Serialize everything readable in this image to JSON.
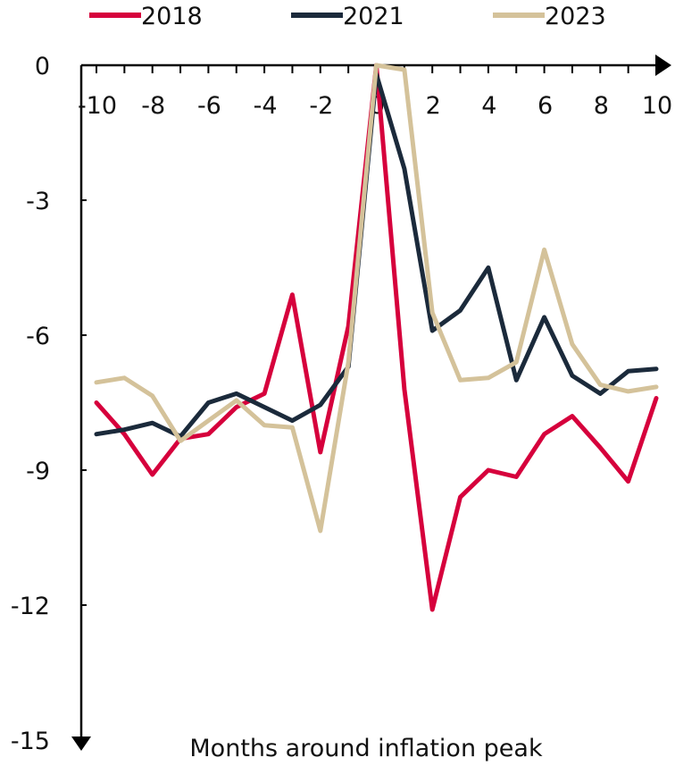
{
  "chart_data": {
    "type": "line",
    "title": "",
    "xlabel": "Months around inflation peak",
    "ylabel": "",
    "xlim": [
      -10,
      10
    ],
    "ylim": [
      -15,
      0
    ],
    "x_ticks": [
      -10,
      -8,
      -6,
      -4,
      -2,
      0,
      2,
      4,
      6,
      8,
      10
    ],
    "y_ticks": [
      0,
      -3,
      -6,
      -9,
      -12,
      -15
    ],
    "grid": false,
    "legend_position": "top",
    "x": [
      -10,
      -9,
      -8,
      -7,
      -6,
      -5,
      -4,
      -3,
      -2,
      -1,
      0,
      1,
      2,
      3,
      4,
      5,
      6,
      7,
      8,
      9,
      10
    ],
    "series": [
      {
        "name": "2018",
        "color": "#d6003c",
        "values": [
          -7.5,
          -8.2,
          -9.1,
          -8.3,
          -8.2,
          -7.6,
          -7.3,
          -5.1,
          -8.6,
          -5.8,
          0.0,
          -7.2,
          -12.1,
          -9.6,
          -9.0,
          -9.15,
          -8.2,
          -7.8,
          -8.5,
          -9.25,
          -7.4
        ]
      },
      {
        "name": "2021",
        "color": "#1b2a3b",
        "values": [
          -8.2,
          -8.1,
          -7.95,
          -8.25,
          -7.5,
          -7.3,
          -7.6,
          -7.9,
          -7.55,
          -6.7,
          -0.2,
          -2.3,
          -5.9,
          -5.45,
          -4.5,
          -7.0,
          -5.6,
          -6.9,
          -7.3,
          -6.8,
          -6.75
        ]
      },
      {
        "name": "2023",
        "color": "#d4c29a",
        "values": [
          -7.05,
          -6.95,
          -7.35,
          -8.35,
          -7.9,
          -7.45,
          -8.0,
          -8.05,
          -10.35,
          -6.6,
          0.0,
          -0.1,
          -5.5,
          -7.0,
          -6.95,
          -6.6,
          -4.1,
          -6.2,
          -7.1,
          -7.25,
          -7.15
        ]
      }
    ]
  }
}
